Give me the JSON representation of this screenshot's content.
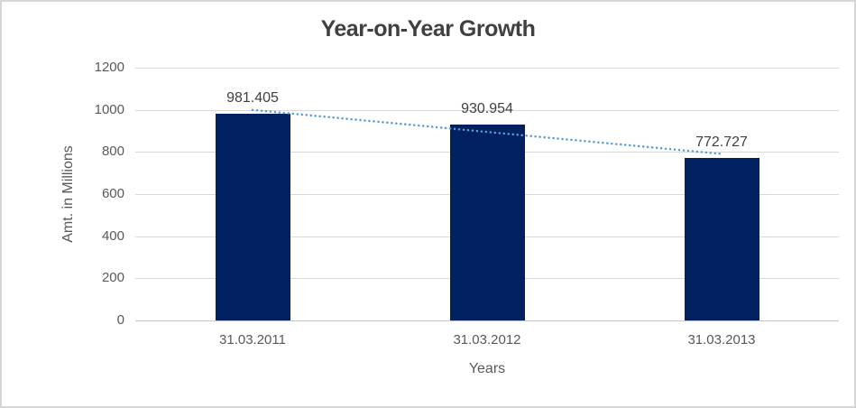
{
  "chart_data": {
    "type": "bar",
    "title": "Year-on-Year Growth",
    "xlabel": "Years",
    "ylabel": "Amt. in Millions",
    "categories": [
      "31.03.2011",
      "31.03.2012",
      "31.03.2013"
    ],
    "values": [
      981.405,
      930.954,
      772.727
    ],
    "data_labels": [
      "981.405",
      "930.954",
      "772.727"
    ],
    "ylim": [
      0,
      1200
    ],
    "yticks": [
      0,
      200,
      400,
      600,
      800,
      1000,
      1200
    ],
    "grid": true,
    "legend": "none",
    "bar_color": "#002060",
    "gridline_color": "#d9d9d9",
    "axis_line_color": "#c6c6c6",
    "title_color": "#404040",
    "label_color": "#595959",
    "data_label_color": "#404040",
    "trendline": {
      "type": "linear",
      "style": "dotted",
      "color": "#5b9bd5",
      "spans_categories": [
        0,
        2
      ]
    }
  }
}
